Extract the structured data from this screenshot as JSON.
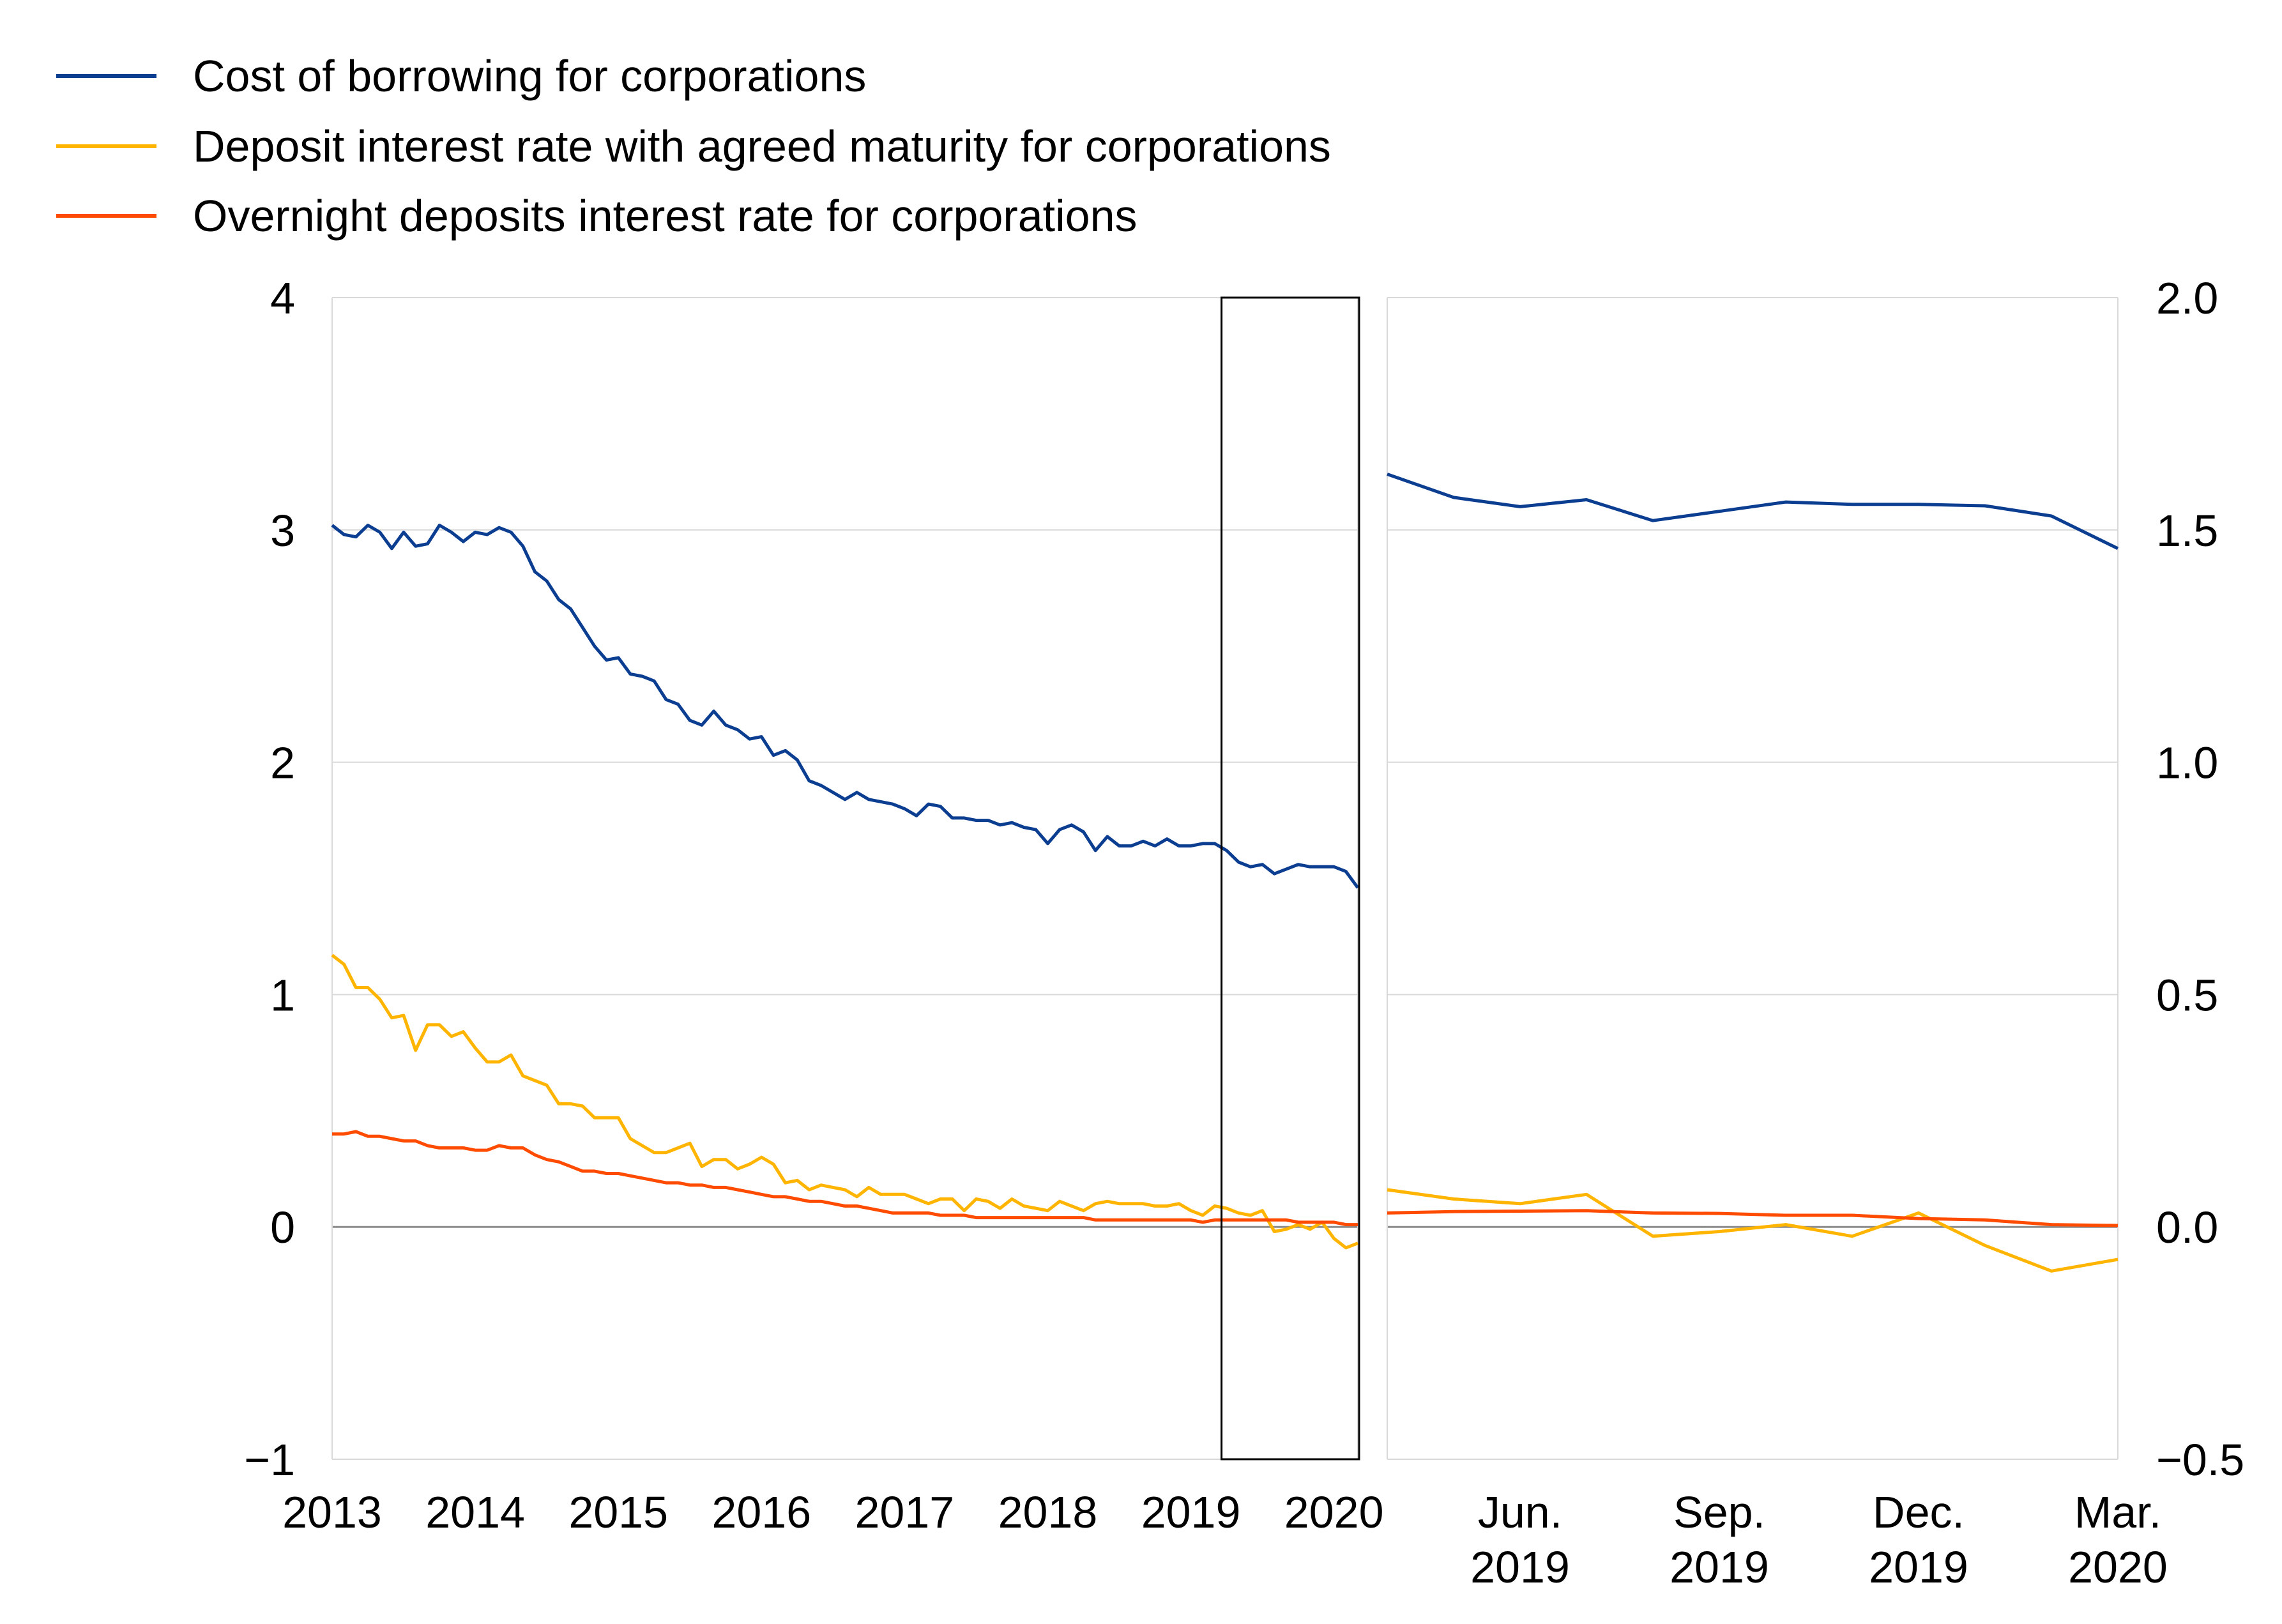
{
  "colors": {
    "borrowing": "#0b3d91",
    "deposit_agreed": "#ffb400",
    "overnight": "#ff4b00",
    "grid": "#d9d9d9",
    "zero": "#8c8c8c",
    "frame": "#000000"
  },
  "chart_data": [
    {
      "type": "line",
      "panel": "left",
      "title": "",
      "xlabel": "",
      "ylabel": "",
      "ylim": [
        -1,
        4
      ],
      "y_ticks": [
        "4",
        "3",
        "2",
        "1",
        "0",
        "−1"
      ],
      "x_ticks": [
        "2013",
        "2014",
        "2015",
        "2016",
        "2017",
        "2018",
        "2019",
        "2020"
      ],
      "grid": true,
      "legend": "top-left",
      "highlight_box": {
        "x_from": "2019-04",
        "x_to": "2020-03"
      },
      "series": [
        {
          "name": "Cost of borrowing for corporations",
          "color_key": "borrowing",
          "start": "2013-01",
          "end": "2020-03",
          "values": [
            3.02,
            2.98,
            2.97,
            3.02,
            2.99,
            2.92,
            2.99,
            2.93,
            2.94,
            3.02,
            2.99,
            2.95,
            2.99,
            2.98,
            3.01,
            2.99,
            2.93,
            2.82,
            2.78,
            2.7,
            2.66,
            2.58,
            2.5,
            2.44,
            2.45,
            2.38,
            2.37,
            2.35,
            2.27,
            2.25,
            2.18,
            2.16,
            2.22,
            2.16,
            2.14,
            2.1,
            2.11,
            2.03,
            2.05,
            2.01,
            1.92,
            1.9,
            1.87,
            1.84,
            1.87,
            1.84,
            1.83,
            1.82,
            1.8,
            1.77,
            1.82,
            1.81,
            1.76,
            1.76,
            1.75,
            1.75,
            1.73,
            1.74,
            1.72,
            1.71,
            1.65,
            1.71,
            1.73,
            1.7,
            1.62,
            1.68,
            1.64,
            1.64,
            1.66,
            1.64,
            1.67,
            1.64,
            1.64,
            1.65,
            1.65,
            1.62,
            1.57,
            1.55,
            1.56,
            1.52,
            1.54,
            1.56,
            1.55,
            1.55,
            1.55,
            1.53,
            1.46
          ]
        },
        {
          "name": "Deposit interest rate with agreed maturity for corporations",
          "color_key": "deposit_agreed",
          "start": "2013-01",
          "end": "2020-03",
          "values": [
            1.17,
            1.13,
            1.03,
            1.03,
            0.98,
            0.9,
            0.91,
            0.76,
            0.87,
            0.87,
            0.82,
            0.84,
            0.77,
            0.71,
            0.71,
            0.74,
            0.65,
            0.63,
            0.61,
            0.53,
            0.53,
            0.52,
            0.47,
            0.47,
            0.47,
            0.38,
            0.35,
            0.32,
            0.32,
            0.34,
            0.36,
            0.26,
            0.29,
            0.29,
            0.25,
            0.27,
            0.3,
            0.27,
            0.19,
            0.2,
            0.16,
            0.18,
            0.17,
            0.16,
            0.13,
            0.17,
            0.14,
            0.14,
            0.14,
            0.12,
            0.1,
            0.12,
            0.12,
            0.07,
            0.12,
            0.11,
            0.08,
            0.12,
            0.09,
            0.08,
            0.07,
            0.11,
            0.09,
            0.07,
            0.1,
            0.11,
            0.1,
            0.1,
            0.1,
            0.09,
            0.09,
            0.1,
            0.07,
            0.05,
            0.09,
            0.08,
            0.06,
            0.05,
            0.07,
            -0.02,
            -0.01,
            0.01,
            -0.01,
            0.02,
            -0.05,
            -0.09,
            -0.07
          ]
        },
        {
          "name": "Overnight deposits interest rate for corporations",
          "color_key": "overnight",
          "start": "2013-01",
          "end": "2020-03",
          "values": [
            0.4,
            0.4,
            0.41,
            0.39,
            0.39,
            0.38,
            0.37,
            0.37,
            0.35,
            0.34,
            0.34,
            0.34,
            0.33,
            0.33,
            0.35,
            0.34,
            0.34,
            0.31,
            0.29,
            0.28,
            0.26,
            0.24,
            0.24,
            0.23,
            0.23,
            0.22,
            0.21,
            0.2,
            0.19,
            0.19,
            0.18,
            0.18,
            0.17,
            0.17,
            0.16,
            0.15,
            0.14,
            0.13,
            0.13,
            0.12,
            0.11,
            0.11,
            0.1,
            0.09,
            0.09,
            0.08,
            0.07,
            0.06,
            0.06,
            0.06,
            0.06,
            0.05,
            0.05,
            0.05,
            0.04,
            0.04,
            0.04,
            0.04,
            0.04,
            0.04,
            0.04,
            0.04,
            0.04,
            0.04,
            0.03,
            0.03,
            0.03,
            0.03,
            0.03,
            0.03,
            0.03,
            0.03,
            0.03,
            0.02,
            0.03,
            0.03,
            0.03,
            0.03,
            0.03,
            0.03,
            0.03,
            0.02,
            0.02,
            0.02,
            0.02,
            0.01,
            0.01
          ]
        }
      ]
    },
    {
      "type": "line",
      "panel": "right",
      "title": "",
      "xlabel": "",
      "ylabel": "",
      "ylim": [
        -0.5,
        2.0
      ],
      "y_ticks": [
        "2.0",
        "1.5",
        "1.0",
        "0.5",
        "0.0",
        "−0.5"
      ],
      "x_ticks": [
        [
          "Jun.",
          "2019"
        ],
        [
          "Sep.",
          "2019"
        ],
        [
          "Dec.",
          "2019"
        ],
        [
          "Mar.",
          "2020"
        ]
      ],
      "x_range": [
        "2019-04",
        "2020-03"
      ],
      "grid": true,
      "series": [
        {
          "name": "Cost of borrowing for corporations",
          "color_key": "borrowing",
          "x": [
            "2019-04",
            "2019-05",
            "2019-06",
            "2019-07",
            "2019-08",
            "2019-09",
            "2019-10",
            "2019-11",
            "2019-12",
            "2020-01",
            "2020-02",
            "2020-03"
          ],
          "values": [
            1.62,
            1.57,
            1.55,
            1.565,
            1.52,
            1.54,
            1.56,
            1.555,
            1.555,
            1.552,
            1.53,
            1.46
          ]
        },
        {
          "name": "Deposit interest rate with agreed maturity for corporations",
          "color_key": "deposit_agreed",
          "x": [
            "2019-04",
            "2019-05",
            "2019-06",
            "2019-07",
            "2019-08",
            "2019-09",
            "2019-10",
            "2019-11",
            "2019-12",
            "2020-01",
            "2020-02",
            "2020-03"
          ],
          "values": [
            0.08,
            0.06,
            0.05,
            0.07,
            -0.02,
            -0.01,
            0.005,
            -0.02,
            0.03,
            -0.04,
            -0.095,
            -0.07
          ]
        },
        {
          "name": "Overnight deposits interest rate for corporations",
          "color_key": "overnight",
          "x": [
            "2019-04",
            "2019-05",
            "2019-06",
            "2019-07",
            "2019-08",
            "2019-09",
            "2019-10",
            "2019-11",
            "2019-12",
            "2020-01",
            "2020-02",
            "2020-03"
          ],
          "values": [
            0.03,
            0.033,
            0.034,
            0.035,
            0.03,
            0.029,
            0.025,
            0.025,
            0.018,
            0.015,
            0.005,
            0.003
          ]
        }
      ]
    }
  ]
}
